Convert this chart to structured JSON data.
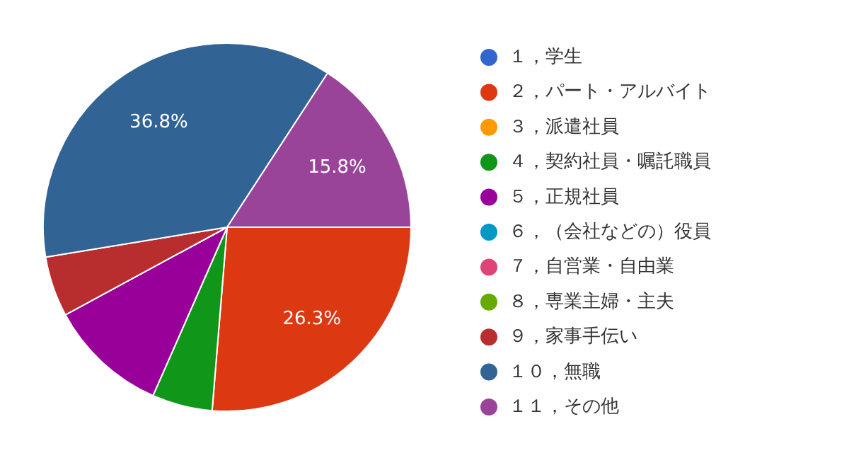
{
  "chart_data": {
    "type": "pie",
    "categories": [
      "１，学生",
      "２，パート・アルバイト",
      "３，派遣社員",
      "４，契約社員・嘱託職員",
      "５，正規社員",
      "６，（会社などの）役員",
      "７，自営業・自由業",
      "８，専業主婦・主夫",
      "９，家事手伝い",
      "１０，無職",
      "１１，その他"
    ],
    "values": [
      0,
      26.3,
      0,
      5.3,
      10.5,
      0,
      0,
      0,
      5.3,
      36.8,
      15.8
    ],
    "value_labels": [
      null,
      "26.3%",
      null,
      null,
      null,
      null,
      null,
      null,
      null,
      "36.8%",
      "15.8%"
    ],
    "colors": [
      "#3366cc",
      "#dc3912",
      "#ff9900",
      "#109618",
      "#990099",
      "#0099c6",
      "#dd4477",
      "#66aa00",
      "#b82e2e",
      "#316395",
      "#994499"
    ],
    "legend": "right"
  }
}
